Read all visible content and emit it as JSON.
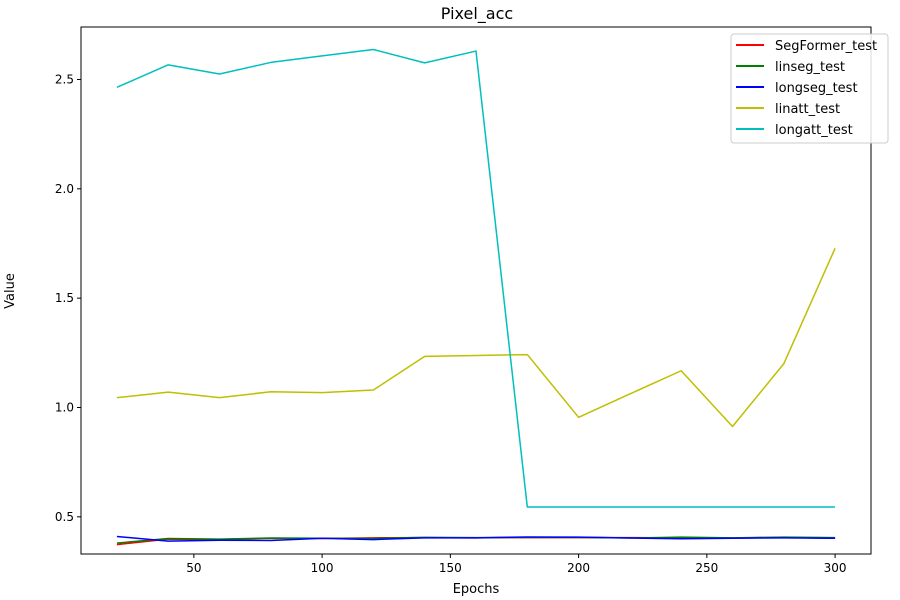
{
  "chart_data": {
    "type": "line",
    "title": "Pixel_acc",
    "xlabel": "Epochs",
    "ylabel": "Value",
    "xlim": [
      6,
      314
    ],
    "ylim": [
      0.33,
      2.74
    ],
    "xticks": [
      50,
      100,
      150,
      200,
      250,
      300
    ],
    "yticks": [
      0.5,
      1.0,
      1.5,
      2.0,
      2.5
    ],
    "ytick_labels": [
      "0.5",
      "1.0",
      "1.5",
      "2.0",
      "2.5"
    ],
    "grid": false,
    "legend_position": "top-right",
    "x": [
      20,
      40,
      60,
      80,
      100,
      120,
      140,
      160,
      180,
      200,
      220,
      240,
      260,
      280,
      300
    ],
    "series": [
      {
        "name": "SegFormer_test",
        "color": "#ff0000",
        "values": [
          0.373,
          0.398,
          0.397,
          0.402,
          0.401,
          0.404,
          0.405,
          0.404,
          0.405,
          0.405,
          0.405,
          0.404,
          0.403,
          0.406,
          0.402
        ]
      },
      {
        "name": "linseg_test",
        "color": "#008000",
        "values": [
          0.38,
          0.401,
          0.398,
          0.403,
          0.402,
          0.401,
          0.406,
          0.405,
          0.406,
          0.406,
          0.403,
          0.407,
          0.404,
          0.407,
          0.405
        ]
      },
      {
        "name": "longseg_test",
        "color": "#0000ff",
        "values": [
          0.41,
          0.389,
          0.393,
          0.392,
          0.402,
          0.396,
          0.404,
          0.404,
          0.408,
          0.407,
          0.403,
          0.4,
          0.402,
          0.404,
          0.402
        ]
      },
      {
        "name": "linatt_test",
        "color": "#bfbf00",
        "values": [
          1.045,
          1.07,
          1.045,
          1.072,
          1.068,
          1.08,
          1.234,
          1.238,
          1.242,
          0.955,
          1.062,
          1.168,
          0.913,
          1.2,
          1.728
        ]
      },
      {
        "name": "longatt_test",
        "color": "#00bfbf",
        "values": [
          2.464,
          2.567,
          2.525,
          2.578,
          2.608,
          2.637,
          2.576,
          2.63,
          0.545,
          0.545,
          0.545,
          0.545,
          0.545,
          0.545,
          0.545
        ]
      }
    ]
  }
}
